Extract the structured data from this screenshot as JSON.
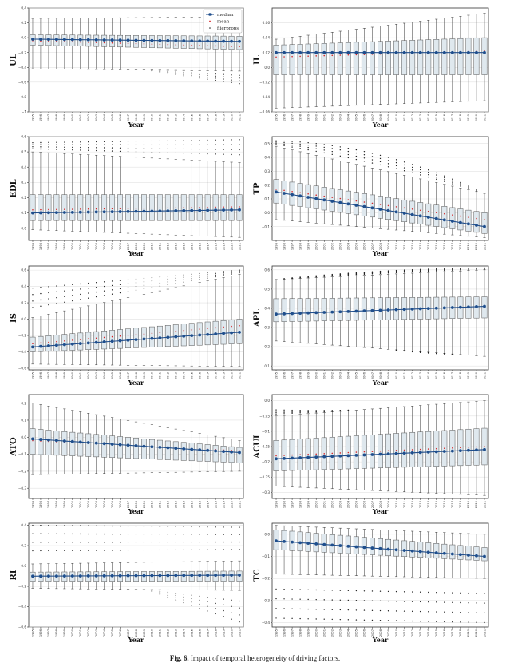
{
  "figure": {
    "caption_label": "Fig. 6.",
    "caption_text": "Impact of temporal heterogeneity of driving factors.",
    "legend": {
      "median": "median",
      "mean": "mean",
      "fliers": "flierprops"
    },
    "colors": {
      "median": "#1f4e8c",
      "mean": "#d62728",
      "box_fill": "#dfe8ee",
      "whisker": "#333333",
      "flier": "#222222"
    }
  },
  "chart_data": [
    {
      "type": "box",
      "ylabel": "UL",
      "xlabel": "Year",
      "ylim": [
        -1.0,
        0.4
      ],
      "yticks": [
        0.4,
        0.2,
        0.0,
        -0.2,
        -0.4,
        -0.6,
        -0.8,
        -1.0
      ],
      "x": [
        "1995",
        "1996",
        "1997",
        "1998",
        "1999",
        "2000",
        "2001",
        "2002",
        "2003",
        "2004",
        "2005",
        "2006",
        "2007",
        "2008",
        "2009",
        "2010",
        "2011",
        "2012",
        "2013",
        "2014",
        "2015",
        "2016",
        "2017",
        "2018",
        "2019",
        "2020",
        "2021"
      ],
      "median": {
        "start": -0.02,
        "end": -0.05
      },
      "mean": {
        "start": -0.04,
        "end": -0.12
      },
      "q1": {
        "start": -0.1,
        "end": -0.16
      },
      "q3": {
        "start": 0.04,
        "end": 0.02
      },
      "wlo": {
        "start": -0.42,
        "end": -0.45
      },
      "whi": {
        "start": 0.26,
        "end": 0.28
      },
      "fliers_low": {
        "start": null,
        "end": -0.62
      },
      "fliers_high": {
        "start": null,
        "end": null
      }
    },
    {
      "type": "box",
      "ylabel": "IL",
      "xlabel": "Year",
      "ylim": [
        -0.06,
        0.08
      ],
      "yticks": [
        0.06,
        0.04,
        0.02,
        0.0,
        -0.02,
        -0.04,
        -0.06
      ],
      "x": [
        "1995",
        "1996",
        "1997",
        "1998",
        "1999",
        "2000",
        "2001",
        "2002",
        "2003",
        "2004",
        "2005",
        "2006",
        "2007",
        "2008",
        "2009",
        "2010",
        "2011",
        "2012",
        "2013",
        "2014",
        "2015",
        "2016",
        "2017",
        "2018",
        "2019",
        "2020",
        "2021"
      ],
      "median": {
        "start": 0.02,
        "end": 0.02
      },
      "mean": {
        "start": 0.014,
        "end": 0.022
      },
      "q1": {
        "start": -0.01,
        "end": -0.01
      },
      "q3": {
        "start": 0.03,
        "end": 0.04
      },
      "wlo": {
        "start": -0.055,
        "end": -0.045
      },
      "whi": {
        "start": 0.038,
        "end": 0.073
      },
      "fliers_low": {
        "start": null,
        "end": null
      },
      "fliers_high": {
        "start": null,
        "end": null
      }
    },
    {
      "type": "box",
      "ylabel": "EDL",
      "xlabel": "Year",
      "ylim": [
        -0.08,
        0.6
      ],
      "yticks": [
        0.6,
        0.5,
        0.4,
        0.3,
        0.2,
        0.1,
        0.0
      ],
      "x": [
        "1995",
        "1996",
        "1997",
        "1998",
        "1999",
        "2000",
        "2001",
        "2002",
        "2003",
        "2004",
        "2005",
        "2006",
        "2007",
        "2008",
        "2009",
        "2010",
        "2011",
        "2012",
        "2013",
        "2014",
        "2015",
        "2016",
        "2017",
        "2018",
        "2019",
        "2020",
        "2021"
      ],
      "median": {
        "start": 0.1,
        "end": 0.12
      },
      "mean": {
        "start": 0.12,
        "end": 0.14
      },
      "q1": {
        "start": 0.05,
        "end": 0.05
      },
      "q3": {
        "start": 0.22,
        "end": 0.22
      },
      "wlo": {
        "start": -0.01,
        "end": -0.06
      },
      "whi": {
        "start": 0.5,
        "end": 0.43
      },
      "fliers_low": {
        "start": null,
        "end": null
      },
      "fliers_high": {
        "start": 0.56,
        "end": 0.58
      }
    },
    {
      "type": "box",
      "ylabel": "TP",
      "xlabel": "Year",
      "ylim": [
        -0.2,
        0.55
      ],
      "yticks": [
        0.5,
        0.4,
        0.3,
        0.2,
        0.1,
        0.0,
        -0.1
      ],
      "x": [
        "1995",
        "1996",
        "1997",
        "1998",
        "1999",
        "2000",
        "2001",
        "2002",
        "2003",
        "2004",
        "2005",
        "2006",
        "2007",
        "2008",
        "2009",
        "2010",
        "2011",
        "2012",
        "2013",
        "2014",
        "2015",
        "2016",
        "2017",
        "2018",
        "2019",
        "2020",
        "2021"
      ],
      "median": {
        "start": 0.15,
        "end": -0.1
      },
      "mean": {
        "start": 0.17,
        "end": -0.05
      },
      "q1": {
        "start": 0.07,
        "end": -0.15
      },
      "q3": {
        "start": 0.24,
        "end": -0.0
      },
      "wlo": {
        "start": -0.05,
        "end": -0.18
      },
      "whi": {
        "start": 0.48,
        "end": 0.14
      },
      "fliers_low": {
        "start": null,
        "end": null
      },
      "fliers_high": {
        "start": 0.52,
        "end": null
      }
    },
    {
      "type": "box",
      "ylabel": "IS",
      "xlabel": "Year",
      "ylim": [
        -0.62,
        0.65
      ],
      "yticks": [
        0.6,
        0.4,
        0.2,
        0.0,
        -0.2,
        -0.4,
        -0.6
      ],
      "x": [
        "1995",
        "1996",
        "1997",
        "1998",
        "1999",
        "2000",
        "2001",
        "2002",
        "2003",
        "2004",
        "2005",
        "2006",
        "2007",
        "2008",
        "2009",
        "2010",
        "2011",
        "2012",
        "2013",
        "2014",
        "2015",
        "2016",
        "2017",
        "2018",
        "2019",
        "2020",
        "2021"
      ],
      "median": {
        "start": -0.34,
        "end": -0.16
      },
      "mean": {
        "start": -0.3,
        "end": -0.08
      },
      "q1": {
        "start": -0.4,
        "end": -0.3
      },
      "q3": {
        "start": -0.22,
        "end": -0.0
      },
      "wlo": {
        "start": -0.55,
        "end": -0.58
      },
      "whi": {
        "start": 0.02,
        "end": 0.55
      },
      "fliers_low": {
        "start": null,
        "end": null
      },
      "fliers_high": {
        "start": 0.38,
        "end": 0.6
      }
    },
    {
      "type": "box",
      "ylabel": "APL",
      "xlabel": "Year",
      "ylim": [
        0.08,
        0.62
      ],
      "yticks": [
        0.6,
        0.5,
        0.4,
        0.3,
        0.2,
        0.1
      ],
      "x": [
        "1995",
        "1996",
        "1997",
        "1998",
        "1999",
        "2000",
        "2001",
        "2002",
        "2003",
        "2004",
        "2005",
        "2006",
        "2007",
        "2008",
        "2009",
        "2010",
        "2011",
        "2012",
        "2013",
        "2014",
        "2015",
        "2016",
        "2017",
        "2018",
        "2019",
        "2020",
        "2021"
      ],
      "median": {
        "start": 0.37,
        "end": 0.41
      },
      "mean": {
        "start": 0.37,
        "end": 0.41
      },
      "q1": {
        "start": 0.33,
        "end": 0.35
      },
      "q3": {
        "start": 0.45,
        "end": 0.46
      },
      "wlo": {
        "start": 0.23,
        "end": 0.15
      },
      "whi": {
        "start": 0.55,
        "end": 0.6
      },
      "fliers_low": {
        "start": null,
        "end": 0.16
      },
      "fliers_high": {
        "start": null,
        "end": 0.61
      }
    },
    {
      "type": "box",
      "ylabel": "ATO",
      "xlabel": "Year",
      "ylim": [
        -0.36,
        0.25
      ],
      "yticks": [
        0.2,
        0.1,
        0.0,
        -0.1,
        -0.2,
        -0.3
      ],
      "x": [
        "1995",
        "1996",
        "1997",
        "1998",
        "1999",
        "2000",
        "2001",
        "2002",
        "2003",
        "2004",
        "2005",
        "2006",
        "2007",
        "2008",
        "2009",
        "2010",
        "2011",
        "2012",
        "2013",
        "2014",
        "2015",
        "2016",
        "2017",
        "2018",
        "2019",
        "2020",
        "2021"
      ],
      "median": {
        "start": -0.01,
        "end": -0.09
      },
      "mean": {
        "start": -0.02,
        "end": -0.08
      },
      "q1": {
        "start": -0.1,
        "end": -0.15
      },
      "q3": {
        "start": 0.05,
        "end": -0.06
      },
      "wlo": {
        "start": -0.22,
        "end": -0.2
      },
      "whi": {
        "start": 0.2,
        "end": -0.02
      },
      "fliers_low": {
        "start": null,
        "end": null
      },
      "fliers_high": {
        "start": null,
        "end": null
      }
    },
    {
      "type": "box",
      "ylabel": "ACUI",
      "xlabel": "Year",
      "ylim": [
        -0.32,
        0.02
      ],
      "yticks": [
        0.0,
        -0.05,
        -0.1,
        -0.15,
        -0.2,
        -0.25,
        -0.3
      ],
      "x": [
        "1995",
        "1996",
        "1997",
        "1998",
        "1999",
        "2000",
        "2001",
        "2002",
        "2003",
        "2004",
        "2005",
        "2006",
        "2007",
        "2008",
        "2009",
        "2010",
        "2011",
        "2012",
        "2013",
        "2014",
        "2015",
        "2016",
        "2017",
        "2018",
        "2019",
        "2020",
        "2021"
      ],
      "median": {
        "start": -0.19,
        "end": -0.16
      },
      "mean": {
        "start": -0.18,
        "end": -0.15
      },
      "q1": {
        "start": -0.23,
        "end": -0.21
      },
      "q3": {
        "start": -0.13,
        "end": -0.09
      },
      "wlo": {
        "start": -0.28,
        "end": -0.31
      },
      "whi": {
        "start": -0.05,
        "end": -0.0
      },
      "fliers_low": {
        "start": null,
        "end": -0.28
      },
      "fliers_high": {
        "start": -0.03,
        "end": null
      }
    },
    {
      "type": "box",
      "ylabel": "RI",
      "xlabel": "Year",
      "ylim": [
        -0.6,
        0.42
      ],
      "yticks": [
        0.4,
        0.2,
        0.0,
        -0.2,
        -0.4,
        -0.6
      ],
      "x": [
        "1995",
        "1996",
        "1997",
        "1998",
        "1999",
        "2000",
        "2001",
        "2002",
        "2003",
        "2004",
        "2005",
        "2006",
        "2007",
        "2008",
        "2009",
        "2010",
        "2011",
        "2012",
        "2013",
        "2014",
        "2015",
        "2016",
        "2017",
        "2018",
        "2019",
        "2020",
        "2021"
      ],
      "median": {
        "start": -0.1,
        "end": -0.09
      },
      "mean": {
        "start": -0.1,
        "end": -0.1
      },
      "q1": {
        "start": -0.15,
        "end": -0.15
      },
      "q3": {
        "start": -0.06,
        "end": -0.05
      },
      "wlo": {
        "start": -0.22,
        "end": -0.24
      },
      "whi": {
        "start": 0.02,
        "end": 0.05
      },
      "fliers_low": {
        "start": null,
        "end": -0.55
      },
      "fliers_high": {
        "start": 0.4,
        "end": 0.38
      }
    },
    {
      "type": "box",
      "ylabel": "TC",
      "xlabel": "Year",
      "ylim": [
        -0.42,
        0.05
      ],
      "yticks": [
        0.0,
        -0.1,
        -0.2,
        -0.3,
        -0.4
      ],
      "x": [
        "1995",
        "1996",
        "1997",
        "1998",
        "1999",
        "2000",
        "2001",
        "2002",
        "2003",
        "2004",
        "2005",
        "2006",
        "2007",
        "2008",
        "2009",
        "2010",
        "2011",
        "2012",
        "2013",
        "2014",
        "2015",
        "2016",
        "2017",
        "2018",
        "2019",
        "2020",
        "2021"
      ],
      "median": {
        "start": -0.03,
        "end": -0.1
      },
      "mean": {
        "start": -0.03,
        "end": -0.1
      },
      "q1": {
        "start": -0.07,
        "end": -0.12
      },
      "q3": {
        "start": 0.02,
        "end": -0.06
      },
      "wlo": {
        "start": -0.18,
        "end": -0.2
      },
      "whi": {
        "start": 0.04,
        "end": 0.0
      },
      "fliers_low": {
        "start": -0.38,
        "end": -0.4
      },
      "fliers_high": {
        "start": null,
        "end": null
      }
    }
  ]
}
